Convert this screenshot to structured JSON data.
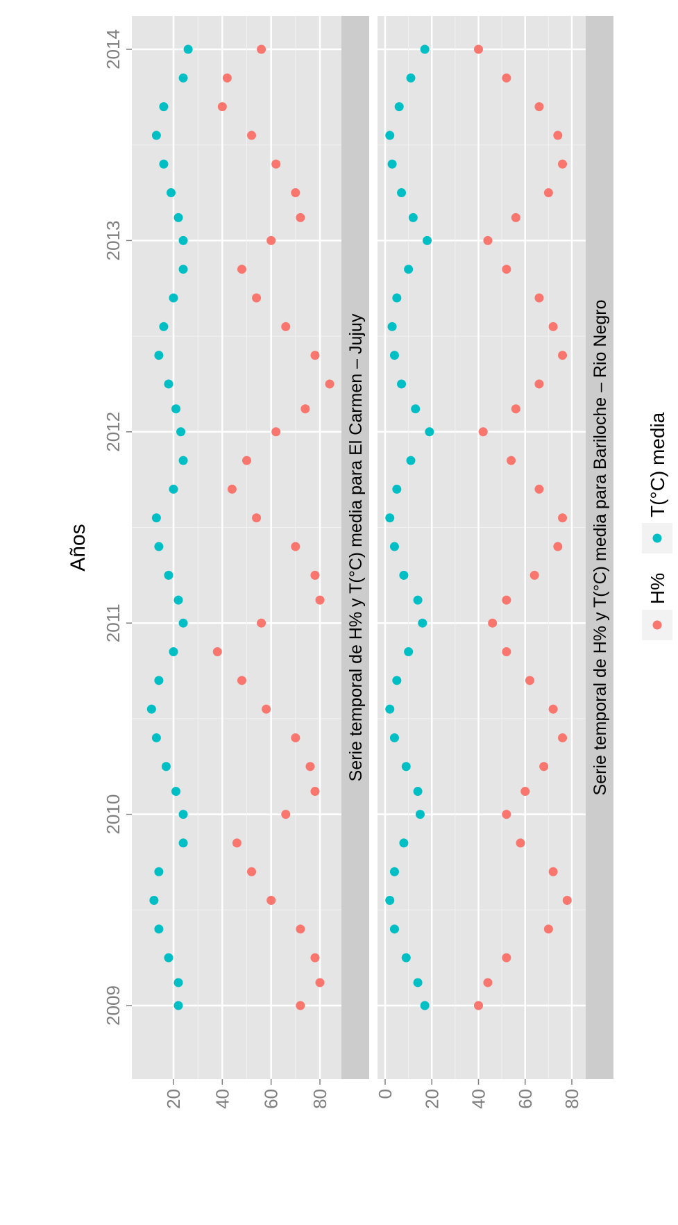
{
  "colors": {
    "humidity": "#F8766D",
    "temperature": "#00BFC4",
    "panel_bg": "#E5E5E5",
    "strip_bg": "#CCCCCC",
    "tick_text": "#7F7F7F"
  },
  "legend": {
    "items": [
      {
        "label": "H%",
        "color": "#F8766D"
      },
      {
        "label": "T(°C) media",
        "color": "#00BFC4"
      }
    ]
  },
  "chart_data": [
    {
      "type": "scatter",
      "title": "Serie temporal de H% y T(°C) media para Bariloche – Rio Negro",
      "xlabel": "Años",
      "ylabel": "",
      "x_ticks": [
        "2009",
        "2010",
        "2011",
        "2012",
        "2013",
        "2014"
      ],
      "y_ticks": [
        0,
        20,
        40,
        60,
        80
      ],
      "xlim": [
        2008.88,
        2014.07
      ],
      "ylim": [
        -4,
        97
      ],
      "series": [
        {
          "name": "H%",
          "x": [
            2009.0,
            2009.12,
            2009.25,
            2009.4,
            2009.55,
            2009.7,
            2009.85,
            2010.0,
            2010.12,
            2010.25,
            2010.4,
            2010.55,
            2010.7,
            2010.85,
            2011.0,
            2011.12,
            2011.25,
            2011.4,
            2011.55,
            2011.7,
            2011.85,
            2012.0,
            2012.12,
            2012.25,
            2012.4,
            2012.55,
            2012.7,
            2012.85,
            2013.0,
            2013.12,
            2013.25,
            2013.4,
            2013.55,
            2013.7,
            2013.85,
            2014.0
          ],
          "y": [
            40,
            44,
            52,
            70,
            78,
            72,
            58,
            52,
            60,
            68,
            76,
            72,
            62,
            52,
            46,
            52,
            64,
            74,
            76,
            66,
            54,
            42,
            56,
            66,
            76,
            72,
            66,
            52,
            44,
            56,
            70,
            76,
            74,
            66,
            52,
            40
          ]
        },
        {
          "name": "T(°C) media",
          "x": [
            2009.0,
            2009.12,
            2009.25,
            2009.4,
            2009.55,
            2009.7,
            2009.85,
            2010.0,
            2010.12,
            2010.25,
            2010.4,
            2010.55,
            2010.7,
            2010.85,
            2011.0,
            2011.12,
            2011.25,
            2011.4,
            2011.55,
            2011.7,
            2011.85,
            2012.0,
            2012.12,
            2012.25,
            2012.4,
            2012.55,
            2012.7,
            2012.85,
            2013.0,
            2013.12,
            2013.25,
            2013.4,
            2013.55,
            2013.7,
            2013.85,
            2014.0
          ],
          "y": [
            17,
            14,
            9,
            4,
            2,
            4,
            8,
            15,
            14,
            9,
            4,
            2,
            5,
            10,
            16,
            14,
            8,
            4,
            2,
            5,
            11,
            19,
            13,
            7,
            4,
            3,
            5,
            10,
            18,
            12,
            7,
            3,
            2,
            6,
            11,
            17
          ]
        }
      ]
    },
    {
      "type": "scatter",
      "title": "Serie temporal de H% y T(°C) media para El Carmen – Jujuy",
      "xlabel": "Años",
      "ylabel": "",
      "x_ticks": [
        "2009",
        "2010",
        "2011",
        "2012",
        "2013",
        "2014"
      ],
      "y_ticks": [
        20,
        40,
        60,
        80
      ],
      "xlim": [
        2008.88,
        2014.07
      ],
      "ylim": [
        5,
        94
      ],
      "series": [
        {
          "name": "H%",
          "x": [
            2009.0,
            2009.12,
            2009.25,
            2009.4,
            2009.55,
            2009.7,
            2009.85,
            2010.0,
            2010.12,
            2010.25,
            2010.4,
            2010.55,
            2010.7,
            2010.85,
            2011.0,
            2011.12,
            2011.25,
            2011.4,
            2011.55,
            2011.7,
            2011.85,
            2012.0,
            2012.12,
            2012.25,
            2012.4,
            2012.55,
            2012.7,
            2012.85,
            2013.0,
            2013.12,
            2013.25,
            2013.4,
            2013.55,
            2013.7,
            2013.85,
            2014.0
          ],
          "y": [
            72,
            80,
            78,
            72,
            60,
            52,
            46,
            66,
            78,
            76,
            70,
            58,
            48,
            38,
            56,
            80,
            78,
            70,
            54,
            44,
            50,
            62,
            74,
            84,
            78,
            66,
            54,
            48,
            60,
            72,
            70,
            62,
            52,
            40,
            42,
            56
          ]
        },
        {
          "name": "T(°C) media",
          "x": [
            2009.0,
            2009.12,
            2009.25,
            2009.4,
            2009.55,
            2009.7,
            2009.85,
            2010.0,
            2010.12,
            2010.25,
            2010.4,
            2010.55,
            2010.7,
            2010.85,
            2011.0,
            2011.12,
            2011.25,
            2011.4,
            2011.55,
            2011.7,
            2011.85,
            2012.0,
            2012.12,
            2012.25,
            2012.4,
            2012.55,
            2012.7,
            2012.85,
            2013.0,
            2013.12,
            2013.25,
            2013.4,
            2013.55,
            2013.7,
            2013.85,
            2014.0
          ],
          "y": [
            22,
            22,
            18,
            14,
            12,
            14,
            24,
            24,
            21,
            17,
            13,
            11,
            14,
            20,
            24,
            22,
            18,
            14,
            13,
            20,
            24,
            23,
            21,
            18,
            14,
            16,
            20,
            24,
            24,
            22,
            19,
            16,
            13,
            16,
            24,
            26
          ]
        }
      ]
    }
  ]
}
